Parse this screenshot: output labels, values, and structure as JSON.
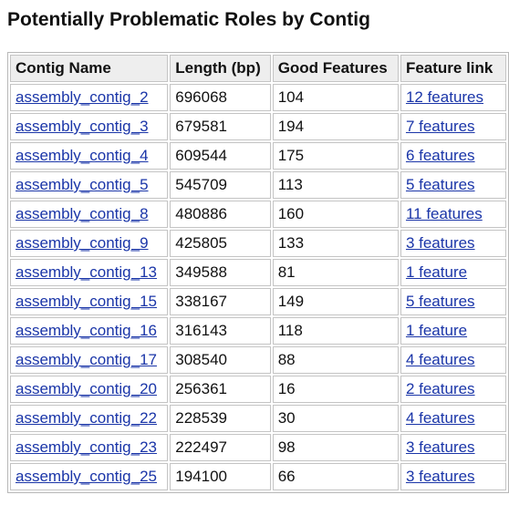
{
  "page": {
    "title": "Potentially Problematic Roles by Contig"
  },
  "table": {
    "headers": [
      "Contig Name",
      "Length (bp)",
      "Good Features",
      "Feature link"
    ],
    "rows": [
      {
        "name": "assembly_contig_2",
        "length": "696068",
        "good": "104",
        "link": "12 features"
      },
      {
        "name": "assembly_contig_3",
        "length": "679581",
        "good": "194",
        "link": "7 features"
      },
      {
        "name": "assembly_contig_4",
        "length": "609544",
        "good": "175",
        "link": "6 features"
      },
      {
        "name": "assembly_contig_5",
        "length": "545709",
        "good": "113",
        "link": "5 features"
      },
      {
        "name": "assembly_contig_8",
        "length": "480886",
        "good": "160",
        "link": "11 features"
      },
      {
        "name": "assembly_contig_9",
        "length": "425805",
        "good": "133",
        "link": "3 features"
      },
      {
        "name": "assembly_contig_13",
        "length": "349588",
        "good": "81",
        "link": "1 feature"
      },
      {
        "name": "assembly_contig_15",
        "length": "338167",
        "good": "149",
        "link": "5 features"
      },
      {
        "name": "assembly_contig_16",
        "length": "316143",
        "good": "118",
        "link": "1 feature"
      },
      {
        "name": "assembly_contig_17",
        "length": "308540",
        "good": "88",
        "link": "4 features"
      },
      {
        "name": "assembly_contig_20",
        "length": "256361",
        "good": "16",
        "link": "2 features"
      },
      {
        "name": "assembly_contig_22",
        "length": "228539",
        "good": "30",
        "link": "4 features"
      },
      {
        "name": "assembly_contig_23",
        "length": "222497",
        "good": "98",
        "link": "3 features"
      },
      {
        "name": "assembly_contig_25",
        "length": "194100",
        "good": "66",
        "link": "3 features"
      }
    ]
  },
  "colors": {
    "link": "#1a35a8",
    "header_bg": "#eeeeee",
    "border": "#c4c4c4"
  }
}
